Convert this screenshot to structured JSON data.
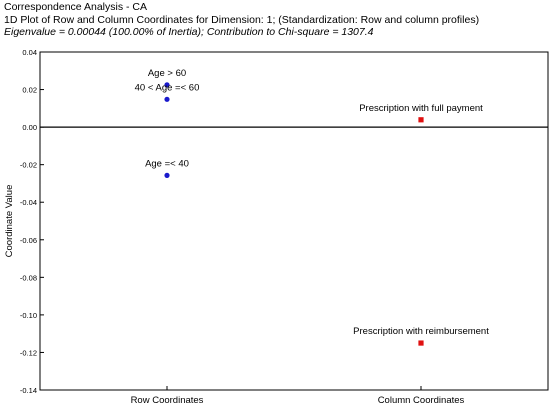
{
  "header": {
    "title": "Correspondence Analysis - CA",
    "subtitle": "1D Plot of Row and Column Coordinates for Dimension: 1; (Standardization: Row and column profiles)",
    "stats": "Eigenvalue = 0.00044 (100.00% of Inertia); Contribution to Chi-square = 1307.4"
  },
  "colors": {
    "row_marker": "#1a1acc",
    "column_marker": "#e01010",
    "axis": "#000000"
  },
  "chart_data": {
    "type": "scatter",
    "title": "",
    "xlabel": "",
    "ylabel": "Coordinate Value",
    "ylim": [
      -0.14,
      0.04
    ],
    "y_ticks": [
      "0.04",
      "0.02",
      "0.00",
      "-0.02",
      "-0.04",
      "-0.06",
      "-0.08",
      "-0.10",
      "-0.12",
      "-0.14"
    ],
    "y_tick_values": [
      0.04,
      0.02,
      0.0,
      -0.02,
      -0.04,
      -0.06,
      -0.08,
      -0.1,
      -0.12,
      -0.14
    ],
    "categories": [
      "Row Coordinates",
      "Column Coordinates"
    ],
    "grid": false,
    "zero_line": true,
    "series": [
      {
        "category": "Row Coordinates",
        "marker": "circle",
        "points": [
          {
            "label": "Age > 60",
            "y": 0.0225
          },
          {
            "label": "40 < Age =< 60",
            "y": 0.0148
          },
          {
            "label": "Age =< 40",
            "y": -0.0257
          }
        ]
      },
      {
        "category": "Column Coordinates",
        "marker": "square",
        "points": [
          {
            "label": "Prescription with full payment",
            "y": 0.0039
          },
          {
            "label": "Prescription with reimbursement",
            "y": -0.115
          }
        ]
      }
    ]
  }
}
